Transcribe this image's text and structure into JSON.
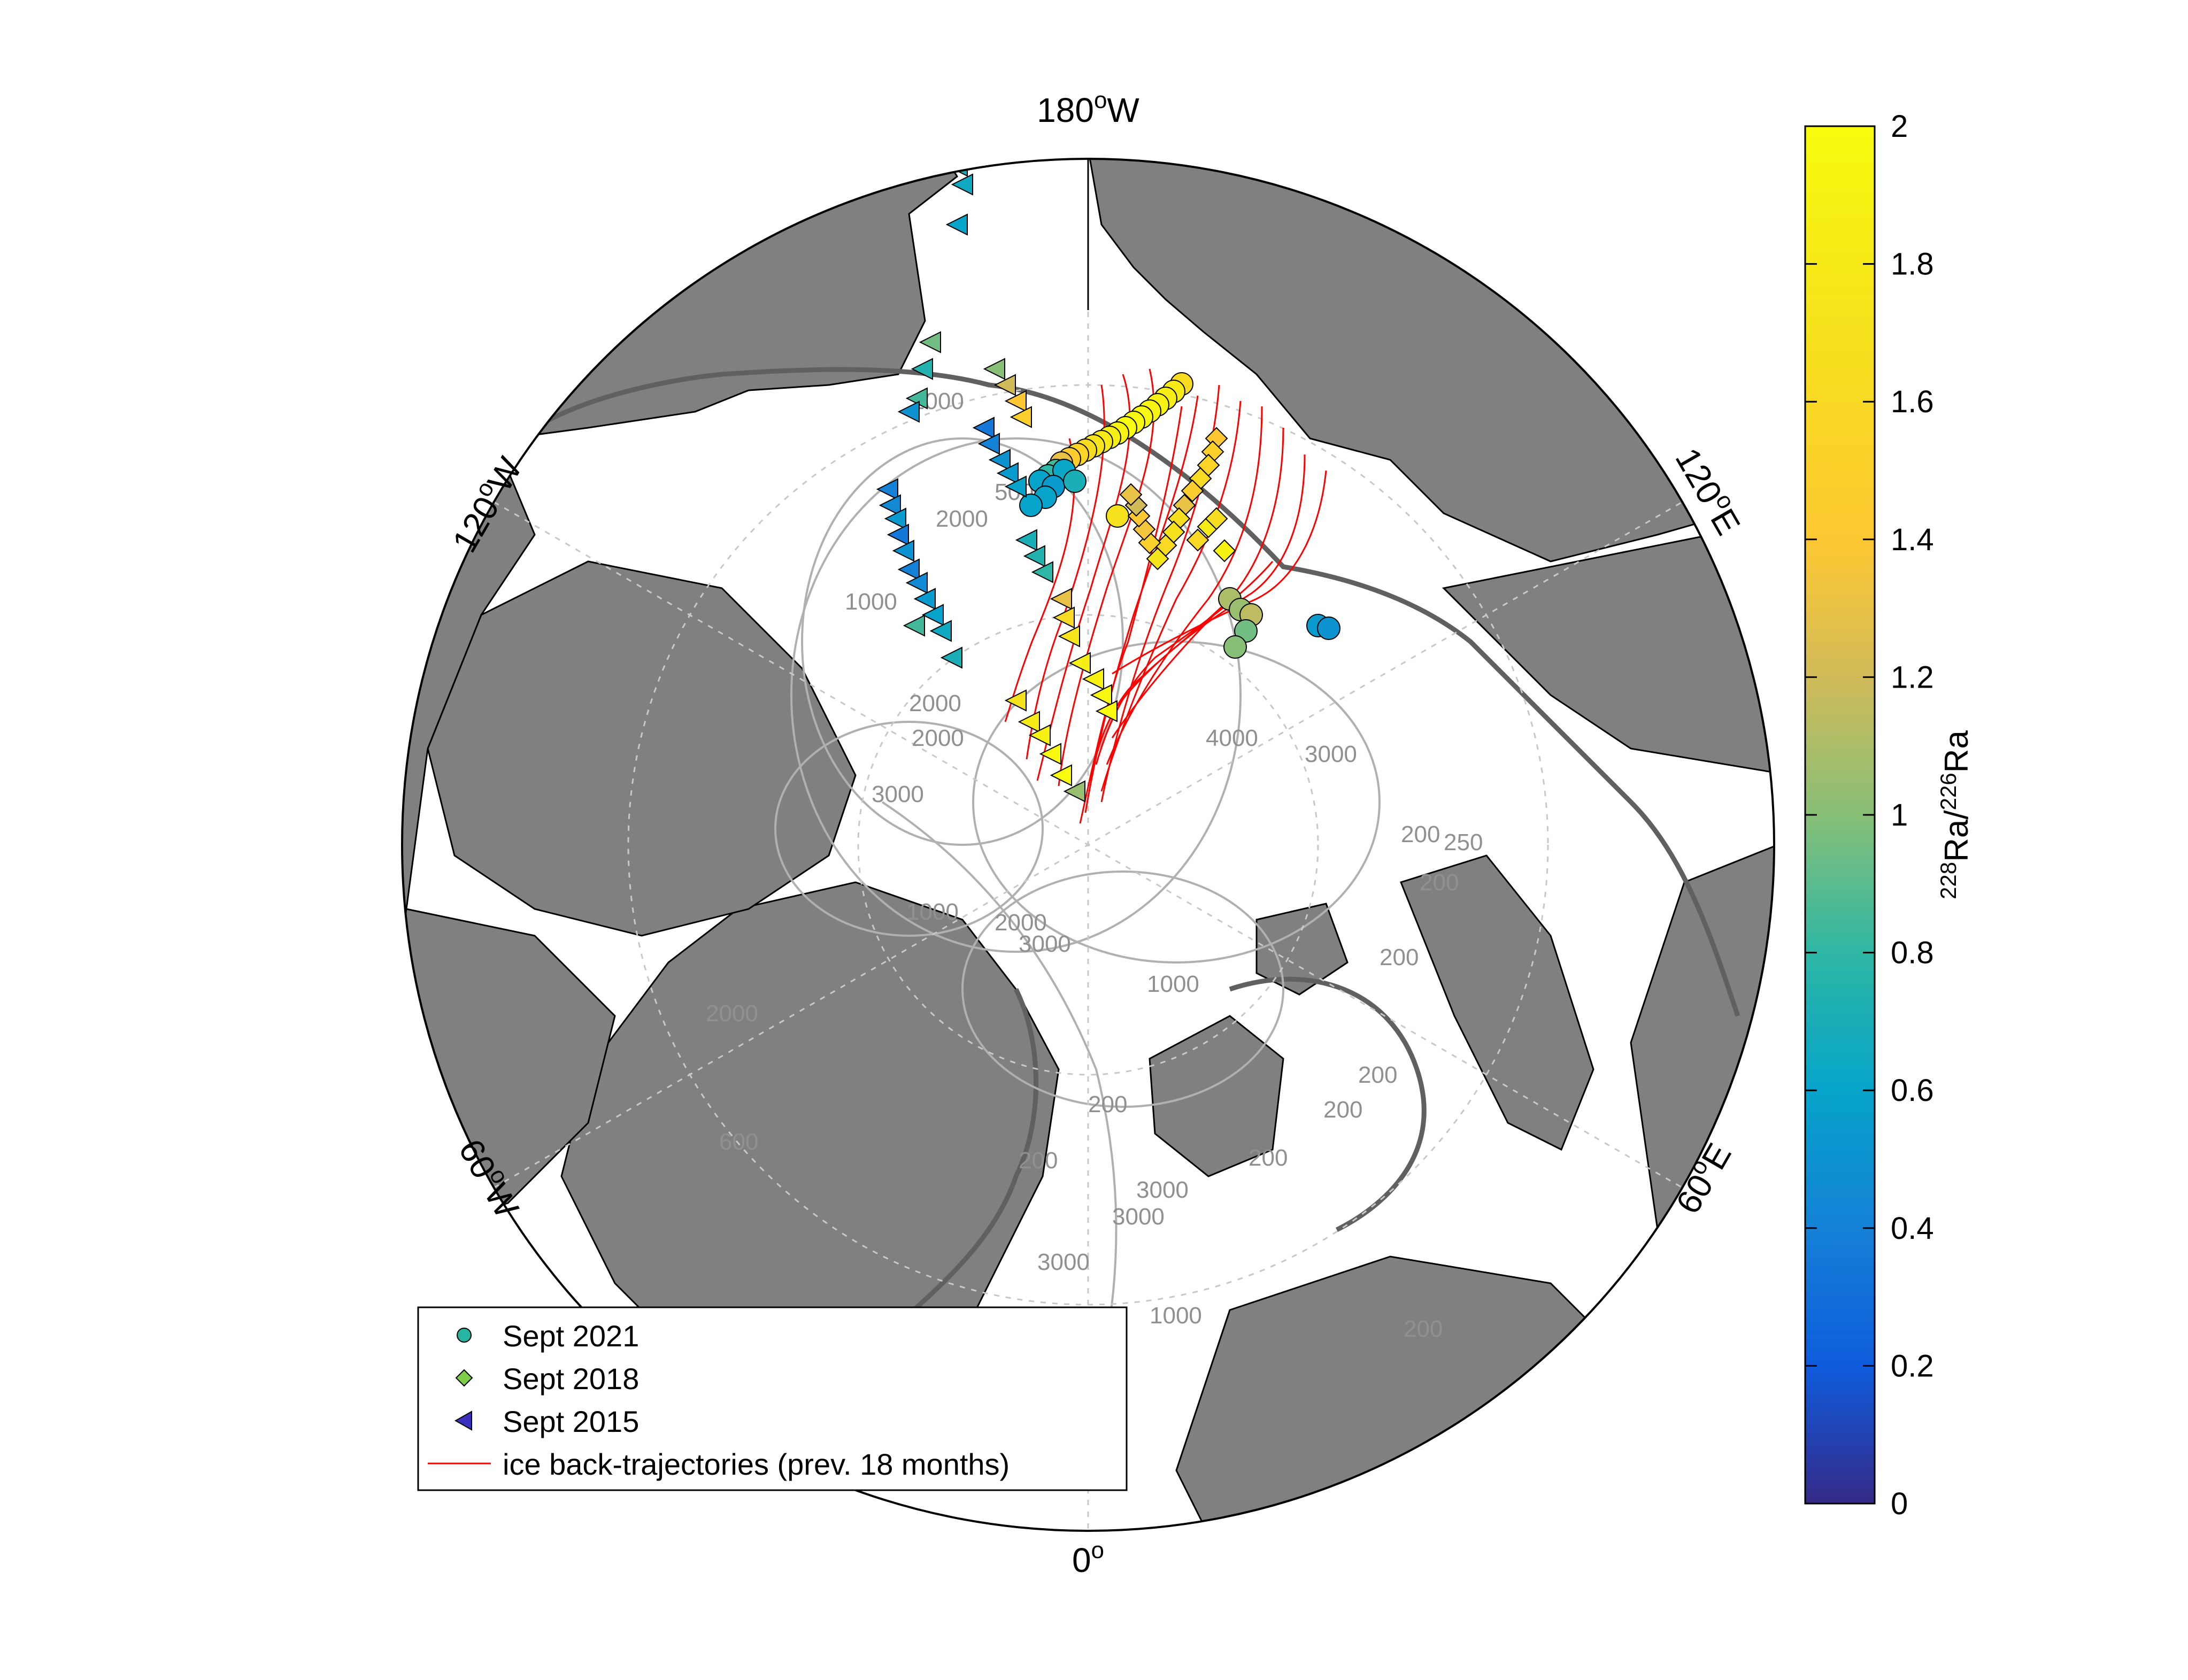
{
  "map": {
    "lon_labels": [
      {
        "deg": "180",
        "dir": "W"
      },
      {
        "deg": "120",
        "dir": "W"
      },
      {
        "deg": "120",
        "dir": "E"
      },
      {
        "deg": "60",
        "dir": "W"
      },
      {
        "deg": "60",
        "dir": "E"
      },
      {
        "deg": "0",
        "dir": ""
      }
    ],
    "contour_labels": [
      "1000",
      "500",
      "2000",
      "2000",
      "3000",
      "3000",
      "2000",
      "1000",
      "2000",
      "4000",
      "3000",
      "200",
      "250",
      "200",
      "200",
      "1000",
      "200",
      "600",
      "2000",
      "200",
      "200",
      "200",
      "3000",
      "3000",
      "3000",
      "200",
      "200",
      "1000",
      "1000"
    ]
  },
  "colors": {
    "ocean": "#ffffff",
    "land": "#808080",
    "coast": "#000000",
    "shelf_break": "#606060",
    "contour": "#b0b0b0",
    "graticule": "#c8c8c8",
    "trajectory": "#ff0000"
  },
  "colorbar": {
    "label_html": "228Ra/226Ra",
    "label_sup_a": "228",
    "label_base_a": "Ra/",
    "label_sup_b": "226",
    "label_base_b": "Ra",
    "min": 0,
    "max": 2,
    "ticks": [
      "0",
      "0.2",
      "0.4",
      "0.6",
      "0.8",
      "1",
      "1.2",
      "1.4",
      "1.6",
      "1.8",
      "2"
    ]
  },
  "legend": {
    "items": [
      {
        "label": "Sept 2021",
        "marker": "circle",
        "color": "#26b5a0"
      },
      {
        "label": "Sept 2018",
        "marker": "diamond",
        "color": "#7fcb4a"
      },
      {
        "label": "Sept 2015",
        "marker": "triangle-left",
        "color": "#3b2fbf"
      },
      {
        "label": "ice back-trajectories (prev. 18 months)",
        "marker": "line",
        "color": "#ff0000"
      }
    ]
  },
  "stations": {
    "sept_2021": [
      1.63,
      1.8,
      1.85,
      1.88,
      1.92,
      1.96,
      1.98,
      2.0,
      1.92,
      1.85,
      1.8,
      1.75,
      1.65,
      1.55,
      1.45,
      1.3,
      0.85,
      0.8,
      0.6,
      0.62,
      0.55,
      0.6,
      0.7,
      1.7,
      1.1,
      1.05,
      1.15,
      0.95,
      1.0,
      0.55,
      0.5
    ],
    "sept_2018": [
      1.4,
      1.5,
      1.55,
      1.6,
      1.45,
      1.3,
      1.65,
      1.7,
      1.6,
      1.75,
      1.5,
      1.35,
      1.4,
      1.2,
      1.3,
      1.8,
      1.6,
      1.9,
      1.65
    ],
    "sept_2015": [
      0.9,
      0.7,
      0.65,
      0.6,
      0.95,
      0.75,
      0.85,
      0.5,
      0.4,
      0.45,
      0.55,
      0.35,
      0.5,
      0.4,
      0.45,
      0.55,
      0.6,
      0.65,
      0.7,
      0.35,
      0.4,
      0.5,
      0.55,
      0.6,
      0.7,
      0.75,
      0.8,
      1.3,
      1.6,
      1.75,
      1.85,
      1.9,
      1.95,
      2.0,
      1.0,
      1.2,
      1.4,
      1.5,
      1.7,
      1.8,
      1.9,
      1.95,
      2.0,
      1.05,
      0.85
    ]
  }
}
